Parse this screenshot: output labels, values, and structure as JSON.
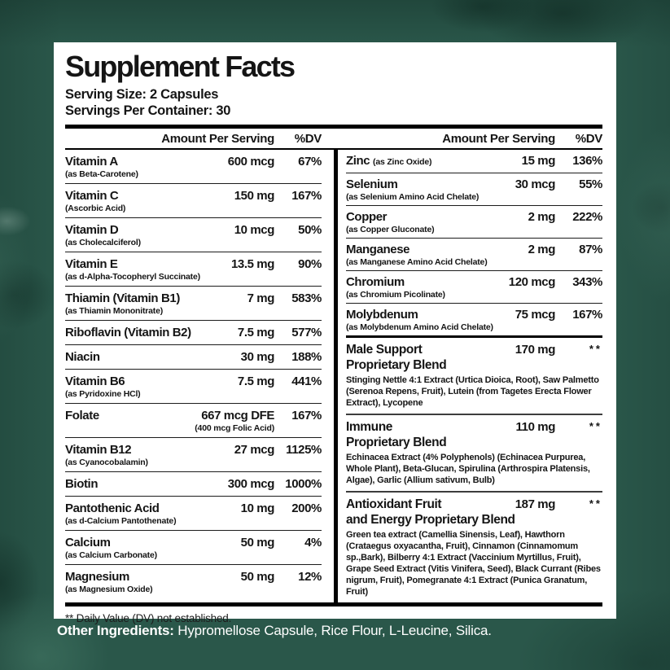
{
  "panel": {
    "title": "Supplement Facts",
    "serving_size": "Serving Size: 2 Capsules",
    "servings_per_container": "Servings Per Container: 30",
    "column_header": {
      "amount": "Amount Per Serving",
      "dv": "%DV"
    },
    "left_rows": [
      {
        "name": "Vitamin A",
        "sub": "(as Beta-Carotene)",
        "amount": "600 mcg",
        "dv": "67%"
      },
      {
        "name": "Vitamin C",
        "sub": "(Ascorbic Acid)",
        "amount": "150 mg",
        "dv": "167%"
      },
      {
        "name": "Vitamin D",
        "sub": "(as Cholecalciferol)",
        "amount": "10 mcg",
        "dv": "50%"
      },
      {
        "name": "Vitamin E",
        "sub": "(as d-Alpha-Tocopheryl Succinate)",
        "amount": "13.5 mg",
        "dv": "90%"
      },
      {
        "name": "Thiamin (Vitamin B1)",
        "sub": "(as Thiamin Mononitrate)",
        "amount": "7 mg",
        "dv": "583%"
      },
      {
        "name": "Riboflavin (Vitamin B2)",
        "amount": "7.5 mg",
        "dv": "577%"
      },
      {
        "name": "Niacin",
        "amount": "30 mg",
        "dv": "188%"
      },
      {
        "name": "Vitamin B6",
        "sub": "(as Pyridoxine HCl)",
        "amount": "7.5 mg",
        "dv": "441%"
      },
      {
        "name": "Folate",
        "amount": "667 mcg DFE",
        "amount_sub": "(400 mcg Folic Acid)",
        "dv": "167%"
      },
      {
        "name": "Vitamin B12",
        "sub": "(as Cyanocobalamin)",
        "amount": "27 mcg",
        "dv": "1125%"
      },
      {
        "name": "Biotin",
        "amount": "300 mcg",
        "dv": "1000%"
      },
      {
        "name": "Pantothenic Acid",
        "sub": "(as d-Calcium Pantothenate)",
        "amount": "10 mg",
        "dv": "200%"
      },
      {
        "name": "Calcium",
        "sub": "(as Calcium Carbonate)",
        "amount": "50 mg",
        "dv": "4%"
      },
      {
        "name": "Magnesium",
        "sub": "(as Magnesium Oxide)",
        "amount": "50 mg",
        "dv": "12%"
      }
    ],
    "right_rows": [
      {
        "name": "Zinc",
        "sub_inline": "(as Zinc Oxide)",
        "amount": "15 mg",
        "dv": "136%"
      },
      {
        "name": "Selenium",
        "sub": "(as Selenium Amino Acid Chelate)",
        "amount": "30 mcg",
        "dv": "55%"
      },
      {
        "name": "Copper",
        "sub": "(as Copper Gluconate)",
        "amount": "2 mg",
        "dv": "222%"
      },
      {
        "name": "Manganese",
        "sub": "(as Manganese Amino Acid Chelate)",
        "amount": "2 mg",
        "dv": "87%"
      },
      {
        "name": "Chromium",
        "sub": "(as Chromium Picolinate)",
        "amount": "120 mcg",
        "dv": "343%"
      },
      {
        "name": "Molybdenum",
        "sub": "(as Molybdenum Amino Acid Chelate)",
        "amount": "75 mcg",
        "dv": "167%"
      }
    ],
    "blends": [
      {
        "name_line1": "Male Support",
        "name_line2": "Proprietary Blend",
        "amount": "170 mg",
        "dv": "**",
        "ingredients": "Stinging Nettle 4:1 Extract (Urtica Dioica, Root), Saw Palmetto (Serenoa Repens, Fruit), Lutein (from Tagetes Erecta Flower Extract), Lycopene"
      },
      {
        "name_line1": "Immune",
        "name_line2": "Proprietary Blend",
        "amount": "110 mg",
        "dv": "**",
        "ingredients": "Echinacea Extract (4% Polyphenols) (Echinacea Purpurea, Whole Plant), Beta-Glucan, Spirulina (Arthrospira Platensis, Algae), Garlic (Allium sativum, Bulb)"
      },
      {
        "name_line1": "Antioxidant Fruit",
        "name_line2": "and Energy Proprietary Blend",
        "amount": "187 mg",
        "dv": "**",
        "ingredients": "Green tea extract (Camellia Sinensis, Leaf), Hawthorn (Crataegus oxyacantha, Fruit), Cinnamon (Cinnamomum sp.,Bark), Bilberry 4:1 Extract (Vaccinium Myrtillus, Fruit), Grape Seed Extract (Vitis Vinifera, Seed), Black Currant (Ribes nigrum, Fruit), Pomegranate 4:1 Extract (Punica Granatum, Fruit)"
      }
    ],
    "footnote": "** Daily Value (DV) not established."
  },
  "other_ingredients": {
    "label": "Other Ingredients:",
    "text": " Hypromellose Capsule, Rice Flour, L-Leucine, Silica."
  },
  "colors": {
    "background_green": "#2a574a",
    "panel_white": "#ffffff",
    "text_black": "#151515",
    "footer_white": "#ffffff"
  }
}
